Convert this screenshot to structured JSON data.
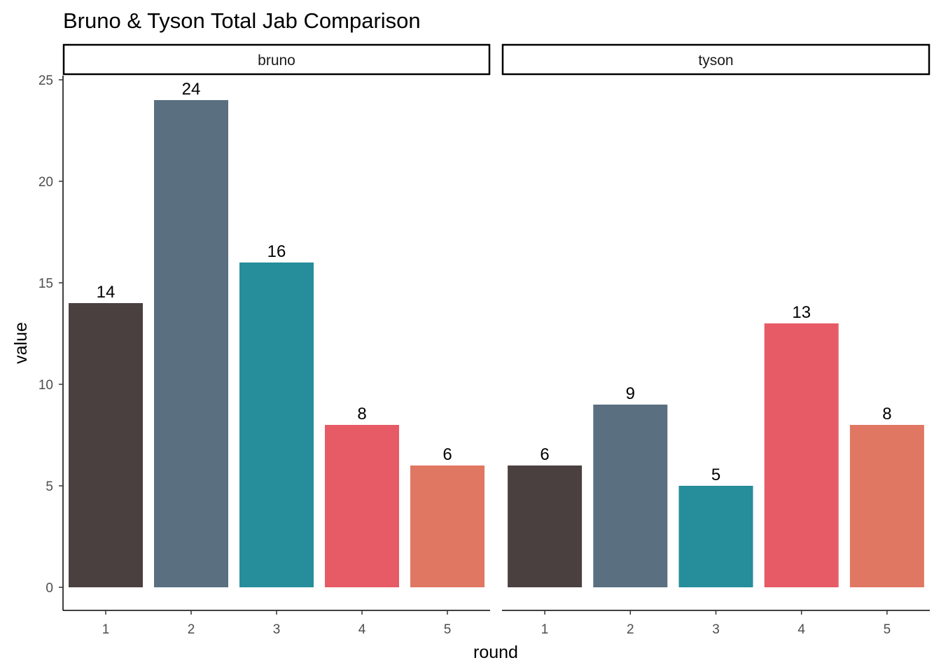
{
  "chart_data": {
    "type": "bar",
    "title": "Bruno & Tyson Total Jab Comparison",
    "xlabel": "round",
    "ylabel": "value",
    "categories": [
      "1",
      "2",
      "3",
      "4",
      "5"
    ],
    "ylim": [
      -1.1,
      25.2
    ],
    "yticks": [
      0,
      5,
      10,
      15,
      20,
      25
    ],
    "grid": false,
    "legend": "none",
    "bar_colors": [
      "#4a403f",
      "#5a6f80",
      "#268d9b",
      "#e65b65",
      "#e07762"
    ],
    "panels": [
      {
        "name": "bruno",
        "values": [
          14,
          24,
          16,
          8,
          6
        ]
      },
      {
        "name": "tyson",
        "values": [
          6,
          9,
          5,
          13,
          8
        ]
      }
    ]
  }
}
